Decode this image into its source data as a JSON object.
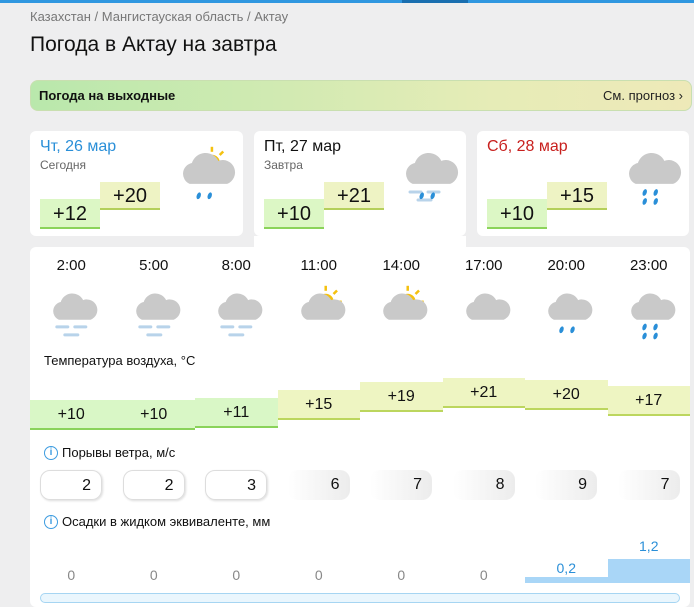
{
  "breadcrumb": "Казахстан / Мангистауская область / Актау",
  "title": "Погода в Актау на завтра",
  "banner": {
    "label": "Погода на выходные",
    "link": "См. прогноз",
    "chevron": "›"
  },
  "days": [
    {
      "day": "Чт, 26 мар",
      "sub": "Сегодня",
      "min": "+12",
      "max": "+20",
      "color": "#2a8fd8",
      "icon": "partly-sunny-rain-icon"
    },
    {
      "day": "Пт, 27 мар",
      "sub": "Завтра",
      "min": "+10",
      "max": "+21",
      "color": "#111111",
      "icon": "fog-rain-icon",
      "selected": true
    },
    {
      "day": "Сб, 28 мар",
      "sub": "",
      "min": "+10",
      "max": "+15",
      "color": "#c8201e",
      "icon": "rain-icon"
    }
  ],
  "hourly": {
    "times": [
      "2:00",
      "5:00",
      "8:00",
      "11:00",
      "14:00",
      "17:00",
      "20:00",
      "23:00"
    ],
    "icons": [
      "fog-cloud-icon",
      "fog-cloud-icon",
      "fog-cloud-icon",
      "partly-sunny-icon",
      "partly-sunny-icon",
      "cloud-icon",
      "light-rain-icon",
      "rain-icon"
    ],
    "temp_label": "Температура воздуха, °C",
    "temps": [
      "+10",
      "+10",
      "+11",
      "+15",
      "+19",
      "+21",
      "+20",
      "+17"
    ],
    "wind_label": "Порывы ветра, м/с",
    "wind": [
      "2",
      "2",
      "3",
      "6",
      "7",
      "8",
      "9",
      "7"
    ],
    "precip_label": "Осадки в жидком эквиваленте, мм",
    "precip": [
      "0",
      "0",
      "0",
      "0",
      "0",
      "0",
      "0,2",
      "1,2"
    ]
  }
}
